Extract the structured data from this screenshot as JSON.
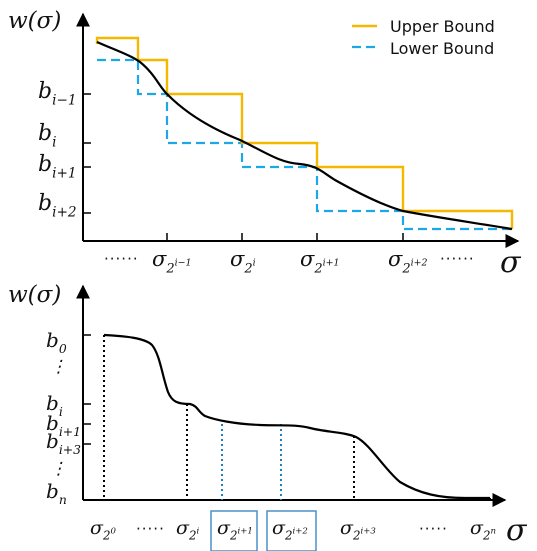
{
  "colors": {
    "upper": "#F5B800",
    "lower": "#1EA7E8",
    "curve": "#000000",
    "box": "#4A90C8"
  },
  "top": {
    "ylabel": "w(σ)",
    "xlabel": "σ",
    "ylabels": [
      {
        "base": "b",
        "sub": "i−1"
      },
      {
        "base": "b",
        "sub": "i"
      },
      {
        "base": "b",
        "sub": "i+1"
      },
      {
        "base": "b",
        "sub": "i+2"
      }
    ],
    "xlabels": [
      {
        "base": "σ",
        "sub": "2",
        "sup": "i−1"
      },
      {
        "base": "σ",
        "sub": "2",
        "sup": "i"
      },
      {
        "base": "σ",
        "sub": "2",
        "sup": "i+1"
      },
      {
        "base": "σ",
        "sub": "2",
        "sup": "i+2"
      }
    ],
    "dots_left": "······",
    "dots_right": "······",
    "legend": {
      "upper": "Upper Bound",
      "lower": "Lower Bound"
    }
  },
  "bottom": {
    "ylabel": "w(σ)",
    "xlabel": "σ",
    "ylabels": [
      {
        "base": "b",
        "sub": "0"
      },
      {
        "base": "⋮",
        "sub": ""
      },
      {
        "base": "b",
        "sub": "i"
      },
      {
        "base": "b",
        "sub": "i+1"
      },
      {
        "base": "b",
        "sub": "i+3"
      },
      {
        "base": "⋮",
        "sub": ""
      },
      {
        "base": "b",
        "sub": "n"
      }
    ],
    "xlabels": [
      {
        "base": "σ",
        "sub": "2",
        "sup": "0"
      },
      {
        "base": "σ",
        "sub": "2",
        "sup": "i"
      },
      {
        "base": "σ",
        "sub": "2",
        "sup": "i+1"
      },
      {
        "base": "σ",
        "sub": "2",
        "sup": "i+2"
      },
      {
        "base": "σ",
        "sub": "2",
        "sup": "i+3"
      },
      {
        "base": "σ",
        "sub": "2",
        "sup": "n"
      }
    ],
    "dots": [
      "·····",
      "·····",
      "·····"
    ]
  }
}
